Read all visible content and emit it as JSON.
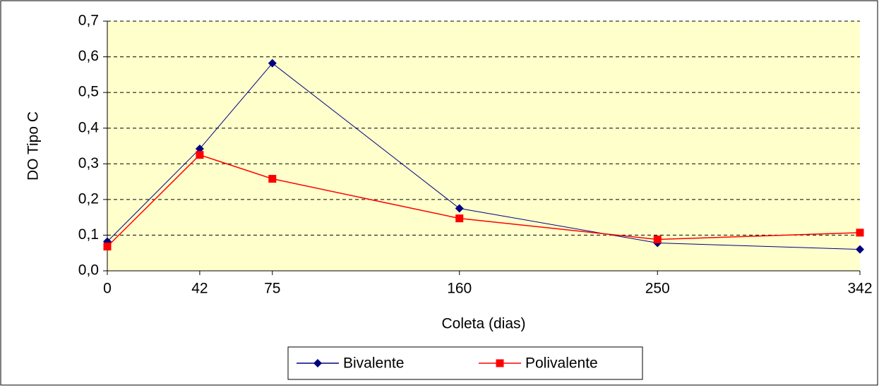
{
  "chart_data": {
    "type": "line",
    "x_label": "Coleta (dias)",
    "y_label": "DO Tipo C",
    "x": [
      0,
      42,
      75,
      160,
      250,
      342
    ],
    "series": [
      {
        "name": "Bivalente",
        "color": "#000080",
        "marker": "diamond",
        "values": [
          0.082,
          0.342,
          0.582,
          0.175,
          0.078,
          0.06
        ]
      },
      {
        "name": "Polivalente",
        "color": "#ff0000",
        "marker": "square",
        "values": [
          0.068,
          0.325,
          0.258,
          0.147,
          0.088,
          0.107
        ]
      }
    ],
    "xlim": [
      0,
      342
    ],
    "xticks": [
      0,
      42,
      75,
      160,
      250,
      342
    ],
    "ylim": [
      0,
      0.7
    ],
    "yticks": [
      {
        "value": 0,
        "label": "0,0"
      },
      {
        "value": 0.1,
        "label": "0,1"
      },
      {
        "value": 0.2,
        "label": "0,2"
      },
      {
        "value": 0.3,
        "label": "0,3"
      },
      {
        "value": 0.4,
        "label": "0,4"
      },
      {
        "value": 0.5,
        "label": "0,5"
      },
      {
        "value": 0.6,
        "label": "0,6"
      },
      {
        "value": 0.7,
        "label": "0,7"
      }
    ],
    "grid": true,
    "legend": "bottom",
    "plot_background": "#ffffcc"
  }
}
